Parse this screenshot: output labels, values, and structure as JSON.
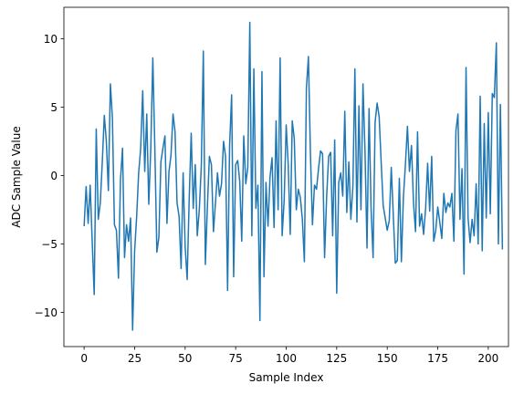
{
  "chart_data": {
    "type": "line",
    "xlabel": "Sample Index",
    "ylabel": "ADC Sample Value",
    "xlim": [
      -10,
      210
    ],
    "ylim": [
      -12.5,
      12.3
    ],
    "xticks": [
      0,
      25,
      50,
      75,
      100,
      125,
      150,
      175,
      200
    ],
    "yticks": [
      -10,
      -5,
      0,
      5,
      10
    ],
    "grid": false,
    "line_color": "#1f77b4",
    "series": [
      {
        "values": [
          -3.7,
          -0.8,
          -3.5,
          -0.7,
          -4.8,
          -8.7,
          3.4,
          -3.2,
          -2.0,
          1.0,
          4.4,
          2.5,
          -1.1,
          6.7,
          4.2,
          -3.6,
          -4.0,
          -7.5,
          -0.3,
          2.0,
          -6.0,
          -3.6,
          -4.8,
          -3.1,
          -11.3,
          -5.5,
          -3.0,
          0.2,
          2.0,
          6.2,
          0.3,
          4.5,
          -2.1,
          2.0,
          8.6,
          2.0,
          -5.6,
          -4.5,
          1.0,
          2.0,
          2.9,
          -3.5,
          0.3,
          1.5,
          4.5,
          3.2,
          -2.0,
          -3.0,
          -6.8,
          0.2,
          -5.2,
          -7.6,
          -1.7,
          3.1,
          -2.4,
          0.8,
          -4.4,
          -2.5,
          0.7,
          9.1,
          -6.5,
          -2.3,
          1.4,
          0.8,
          -4.1,
          -2.0,
          0.2,
          -1.5,
          -0.6,
          2.5,
          1.4,
          -8.4,
          2.2,
          5.9,
          -7.4,
          0.8,
          1.1,
          -0.4,
          -4.8,
          2.9,
          -0.6,
          0.6,
          11.2,
          -4.4,
          7.8,
          -2.4,
          -0.7,
          -10.6,
          7.6,
          -7.4,
          -0.5,
          -3.7,
          -0.1,
          1.3,
          -3.8,
          4.0,
          -2.5,
          8.6,
          -4.4,
          -1.8,
          3.7,
          0.8,
          -4.3,
          4.0,
          2.7,
          -2.5,
          -1.0,
          -1.6,
          -3.2,
          -6.3,
          6.4,
          8.7,
          1.6,
          -3.6,
          -0.7,
          -1.0,
          0.5,
          1.8,
          1.6,
          -6.0,
          -1.6,
          1.4,
          1.7,
          -4.4,
          2.6,
          -8.6,
          -0.5,
          0.2,
          -1.5,
          4.7,
          -2.7,
          1.0,
          -3.2,
          -0.8,
          7.8,
          -3.4,
          5.1,
          -2.5,
          6.7,
          1.8,
          -5.3,
          4.9,
          -2.4,
          -6.0,
          3.9,
          5.3,
          4.3,
          1.0,
          -2.2,
          -3.1,
          -4.0,
          -3.3,
          0.6,
          -2.9,
          -6.4,
          -6.2,
          -0.2,
          -6.3,
          -1.6,
          0.8,
          3.6,
          0.3,
          2.2,
          -2.0,
          -4.1,
          3.2,
          -3.7,
          -2.8,
          -4.3,
          -2.4,
          0.9,
          -2.6,
          1.4,
          -4.8,
          -4.0,
          -2.3,
          -3.4,
          -4.6,
          -1.3,
          -2.7,
          -2.0,
          -2.3,
          -1.3,
          -4.8,
          3.3,
          4.5,
          -3.2,
          0.5,
          -7.2,
          7.9,
          -3.1,
          -4.9,
          -3.2,
          -4.4,
          -0.6,
          -5.0,
          5.8,
          -5.5,
          3.8,
          -3.1,
          4.6,
          -2.8,
          6.0,
          5.7,
          9.7,
          -5.0,
          5.2,
          -5.4
        ]
      }
    ]
  }
}
